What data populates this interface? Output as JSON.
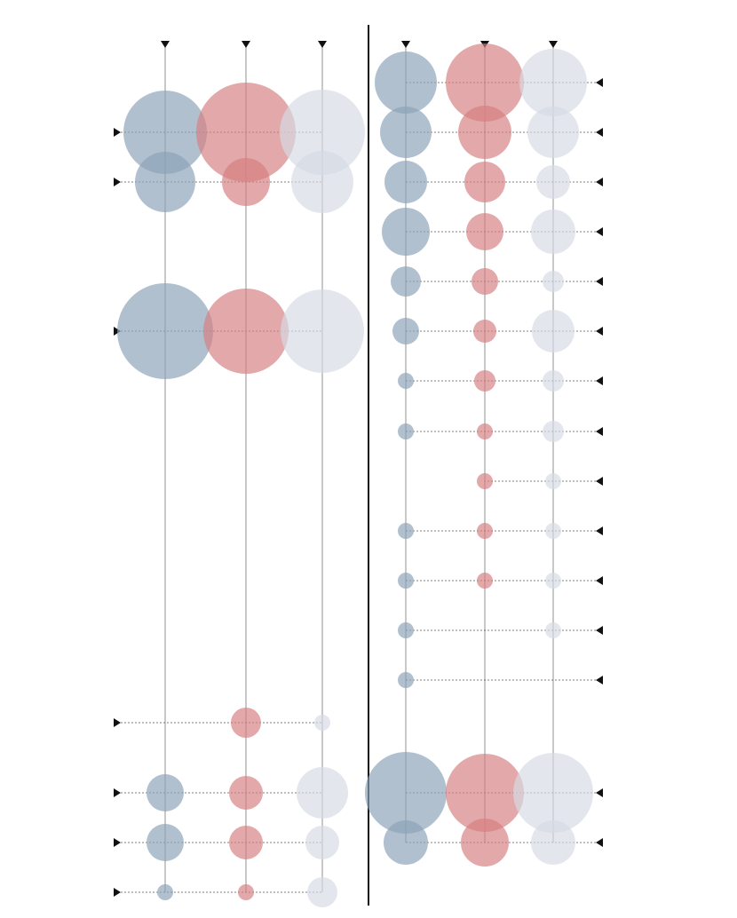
{
  "chart_data": [
    {
      "type": "bubble",
      "categories": [
        null,
        null,
        null,
        null,
        null,
        null,
        null,
        null,
        null,
        null,
        null,
        null,
        null,
        null,
        null,
        null,
        null
      ],
      "series": [
        {
          "color": "#8ca2b8",
          "values": [
            null,
            47,
            34,
            null,
            null,
            54,
            null,
            null,
            null,
            null,
            null,
            null,
            null,
            null,
            21,
            21,
            9
          ]
        },
        {
          "color": "#d67f80",
          "values": [
            null,
            56,
            27,
            null,
            null,
            48,
            null,
            null,
            null,
            null,
            null,
            null,
            null,
            17,
            19,
            19,
            9
          ]
        },
        {
          "color": "#d6dae4",
          "values": [
            null,
            48,
            35,
            null,
            null,
            47,
            null,
            null,
            null,
            null,
            null,
            null,
            null,
            9,
            29,
            19,
            17
          ]
        }
      ]
    },
    {
      "type": "bubble",
      "categories": [
        null,
        null,
        null,
        null,
        null,
        null,
        null,
        null,
        null,
        null,
        null,
        null,
        null,
        null,
        null,
        null,
        null
      ],
      "series": [
        {
          "color": "#8ca2b8",
          "values": [
            35,
            29,
            24,
            27,
            17,
            15,
            9,
            9,
            null,
            9,
            9,
            9,
            9,
            null,
            46,
            25,
            null
          ]
        },
        {
          "color": "#d67f80",
          "values": [
            44,
            30,
            23,
            21,
            15,
            13,
            12,
            9,
            9,
            9,
            9,
            null,
            null,
            null,
            44,
            27,
            null
          ]
        },
        {
          "color": "#d6dae4",
          "values": [
            38,
            29,
            19,
            25,
            12,
            24,
            12,
            12,
            9,
            9,
            9,
            9,
            null,
            null,
            45,
            25,
            null
          ]
        }
      ]
    }
  ]
}
